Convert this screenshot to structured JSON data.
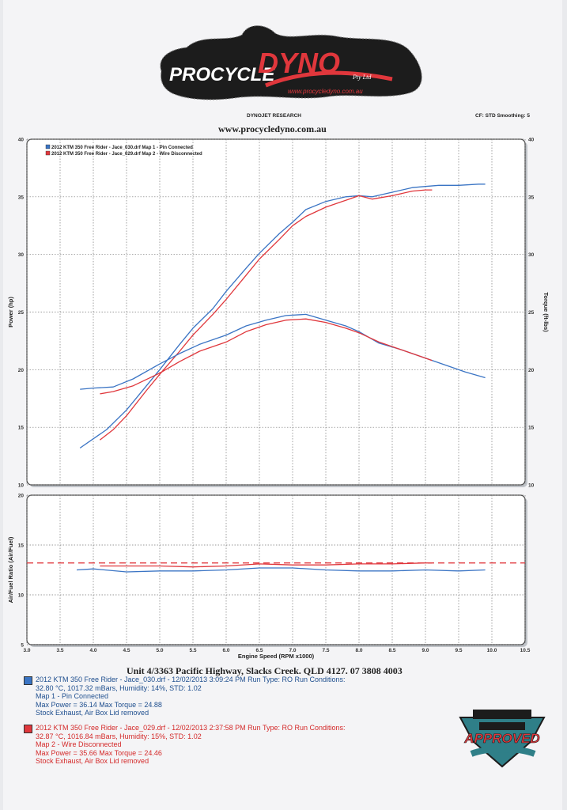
{
  "header": {
    "logo_main": "PROCYCLE DYNO",
    "logo_suffix": "Pty Ltd",
    "logo_url": "www.procycledyno.com.au",
    "research": "DYNOJET RESEARCH",
    "cf_smoothing": "CF: STD  Smoothing: 5",
    "website": "www.procycledyno.com.au"
  },
  "chart_data": [
    {
      "type": "line",
      "title": "",
      "xlabel": "",
      "ylabel": "Power (hp)",
      "ylabel_right": "Torque (ft-lbs)",
      "xlim": [
        3.0,
        10.5
      ],
      "ylim": [
        10,
        40
      ],
      "y_ticks": [
        10,
        15,
        20,
        25,
        30,
        35,
        40
      ],
      "legend_position": "top-left",
      "legend": [
        "2012 KTM 350 Free Rider - Jace_030.drf Map 1 - Pin Connected",
        "2012 KTM 350 Free Rider - Jace_029.drf Map 2 - Wire Disconnected"
      ],
      "series": [
        {
          "name": "Power - Map 1 - Pin Connected",
          "color": "#3a74c4",
          "x": [
            3.8,
            4.0,
            4.2,
            4.5,
            4.8,
            5.0,
            5.3,
            5.5,
            5.8,
            6.0,
            6.3,
            6.5,
            6.8,
            7.0,
            7.2,
            7.5,
            7.8,
            8.0,
            8.2,
            8.5,
            8.8,
            9.0,
            9.2,
            9.5,
            9.8,
            9.9
          ],
          "y": [
            13.2,
            14.0,
            14.8,
            16.5,
            18.6,
            20.0,
            22.2,
            23.6,
            25.3,
            26.8,
            28.8,
            30.1,
            31.8,
            32.8,
            33.9,
            34.6,
            35.0,
            35.1,
            35.0,
            35.4,
            35.8,
            35.9,
            36.0,
            36.0,
            36.1,
            36.1
          ]
        },
        {
          "name": "Power - Map 2 - Wire Disconnected",
          "color": "#e0373c",
          "x": [
            4.1,
            4.3,
            4.5,
            4.8,
            5.0,
            5.3,
            5.5,
            5.8,
            6.0,
            6.3,
            6.5,
            6.8,
            7.0,
            7.2,
            7.5,
            7.8,
            8.0,
            8.2,
            8.5,
            8.8,
            9.0,
            9.1
          ],
          "y": [
            13.9,
            14.8,
            16.0,
            18.2,
            19.6,
            21.6,
            23.0,
            24.8,
            26.1,
            28.2,
            29.6,
            31.3,
            32.5,
            33.3,
            34.1,
            34.7,
            35.1,
            34.8,
            35.1,
            35.5,
            35.6,
            35.6
          ]
        },
        {
          "name": "Torque - Map 1 - Pin Connected",
          "color": "#3a74c4",
          "x": [
            3.8,
            4.0,
            4.3,
            4.6,
            5.0,
            5.3,
            5.6,
            6.0,
            6.3,
            6.6,
            6.9,
            7.2,
            7.5,
            7.8,
            8.0,
            8.3,
            8.6,
            9.0,
            9.3,
            9.6,
            9.9
          ],
          "y": [
            18.3,
            18.4,
            18.5,
            19.2,
            20.5,
            21.4,
            22.2,
            23.0,
            23.8,
            24.3,
            24.7,
            24.8,
            24.3,
            23.8,
            23.3,
            22.3,
            21.8,
            21.0,
            20.4,
            19.8,
            19.3
          ]
        },
        {
          "name": "Torque - Map 2 - Wire Disconnected",
          "color": "#e0373c",
          "x": [
            4.1,
            4.3,
            4.6,
            5.0,
            5.3,
            5.6,
            6.0,
            6.3,
            6.6,
            6.9,
            7.2,
            7.5,
            7.8,
            8.0,
            8.3,
            8.6,
            9.0,
            9.1
          ],
          "y": [
            17.9,
            18.1,
            18.6,
            19.7,
            20.7,
            21.6,
            22.4,
            23.3,
            23.9,
            24.3,
            24.4,
            24.1,
            23.6,
            23.2,
            22.4,
            21.8,
            21.0,
            20.8
          ]
        }
      ]
    },
    {
      "type": "line",
      "title": "",
      "xlabel": "Engine Speed (RPM x1000)",
      "ylabel": "Air/Fuel Ratio (Air/Fuel)",
      "xlim": [
        3.0,
        10.5
      ],
      "ylim": [
        5,
        20
      ],
      "x_ticks": [
        3.0,
        3.5,
        4.0,
        4.5,
        5.0,
        5.5,
        6.0,
        6.5,
        7.0,
        7.5,
        8.0,
        8.5,
        9.0,
        9.5,
        10.0,
        10.5
      ],
      "y_ticks": [
        5,
        10,
        15,
        20
      ],
      "reference_line": {
        "value": 13.2,
        "style": "dashed",
        "color": "#e0373c"
      },
      "series": [
        {
          "name": "AFR - Map 1 - Pin Connected",
          "color": "#3a74c4",
          "x": [
            3.75,
            4.0,
            4.5,
            5.0,
            5.5,
            6.0,
            6.5,
            7.0,
            7.5,
            8.0,
            8.5,
            9.0,
            9.5,
            9.9
          ],
          "y": [
            12.5,
            12.6,
            12.3,
            12.4,
            12.4,
            12.5,
            12.7,
            12.7,
            12.5,
            12.4,
            12.4,
            12.5,
            12.4,
            12.5
          ]
        },
        {
          "name": "AFR - Map 2 - Wire Disconnected",
          "color": "#e0373c",
          "x": [
            4.1,
            4.5,
            5.0,
            5.5,
            6.0,
            6.5,
            7.0,
            7.5,
            8.0,
            8.5,
            9.0,
            9.1
          ],
          "y": [
            12.9,
            12.9,
            12.9,
            12.8,
            12.9,
            13.1,
            13.0,
            13.0,
            13.1,
            13.1,
            13.2,
            13.2
          ]
        }
      ]
    }
  ],
  "footer": {
    "address": "Unit 4/3363 Pacific Highway, Slacks Creek. QLD 4127. 07 3808 4003",
    "run1": {
      "color": "#1f4f8f",
      "line1": "2012 KTM 350 Free Rider - Jace_030.drf - 12/02/2013 3:09:24 PM  Run Type: RO  Run Conditions:",
      "line2": "32.80 °C, 1017.32 mBars,  Humidity:  14%, STD: 1.02",
      "line3": "Map 1 - Pin Connected",
      "line4": "Max Power = 36.14  Max Torque = 24.88",
      "line5": "Stock Exhaust, Air Box Lid removed"
    },
    "run2": {
      "color": "#d42a2a",
      "line1": "2012 KTM 350 Free Rider - Jace_029.drf - 12/02/2013 2:37:58 PM  Run Type: RO  Run Conditions:",
      "line2": "32.87 °C, 1016.84 mBars,  Humidity:  15%, STD: 1.02",
      "line3": "Map 2 - Wire Disconnected",
      "line4": "Max Power = 35.66  Max Torque = 24.46",
      "line5": "Stock Exhaust, Air Box Lid removed"
    },
    "badge_text": "APPROVED"
  }
}
